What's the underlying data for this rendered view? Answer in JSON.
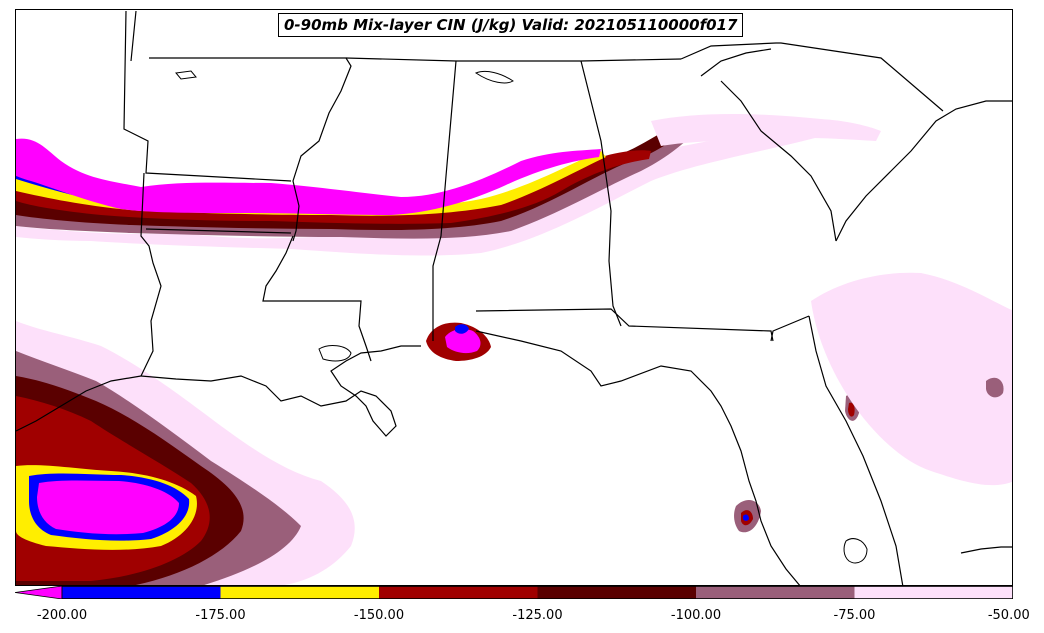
{
  "title": "0-90mb Mix-layer CIN (J/kg) Valid: 202105110000f017",
  "colorbar": {
    "ticks": [
      "-200.00",
      "-175.00",
      "-150.00",
      "-125.00",
      "-100.00",
      "-75.00",
      "-50.00"
    ],
    "bins": [
      {
        "range": "< -200",
        "color": "#ff00ff"
      },
      {
        "range": "-200 to -175",
        "color": "#0000ff"
      },
      {
        "range": "-175 to -150",
        "color": "#ffee00"
      },
      {
        "range": "-150 to -125",
        "color": "#a00000"
      },
      {
        "range": "-125 to -100",
        "color": "#5a0000"
      },
      {
        "range": "-100 to -75",
        "color": "#9a5f7a"
      },
      {
        "range": "-75 to -50",
        "color": "#fde0fa"
      }
    ]
  }
}
